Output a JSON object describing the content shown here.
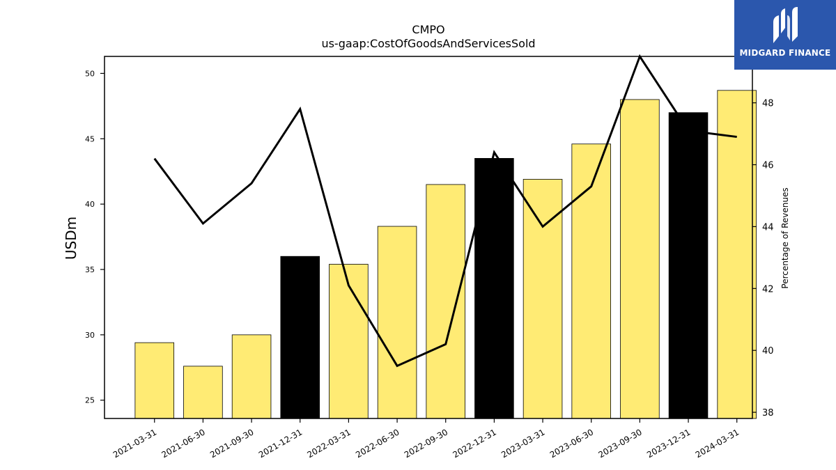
{
  "chart_data": {
    "type": "bar",
    "title": "CMPO",
    "subtitle": "us-gaap:CostOfGoodsAndServicesSold",
    "ylabel": "USDm",
    "y2label": "Percentage of Revenues",
    "ylim": [
      23.6,
      51.3
    ],
    "y2lim": [
      37.8,
      49.5
    ],
    "yticks": [
      25,
      30,
      35,
      40,
      45,
      50
    ],
    "y2ticks": [
      38,
      40,
      42,
      44,
      46,
      48
    ],
    "categories": [
      "2021-03-31",
      "2021-06-30",
      "2021-09-30",
      "2021-12-31",
      "2022-03-31",
      "2022-06-30",
      "2022-09-30",
      "2022-12-31",
      "2023-03-31",
      "2023-06-30",
      "2023-09-30",
      "2023-12-31",
      "2024-03-31"
    ],
    "series": [
      {
        "type": "bar",
        "axis": "left",
        "values": [
          29.4,
          27.6,
          30.0,
          36.0,
          35.4,
          38.3,
          41.5,
          43.5,
          41.9,
          44.6,
          48.0,
          47.0,
          48.7
        ],
        "colors": [
          "#ffeb74",
          "#ffeb74",
          "#ffeb74",
          "#000000",
          "#ffeb74",
          "#ffeb74",
          "#ffeb74",
          "#000000",
          "#ffeb74",
          "#ffeb74",
          "#ffeb74",
          "#000000",
          "#ffeb74"
        ]
      },
      {
        "type": "line",
        "axis": "right",
        "values": [
          46.2,
          44.1,
          45.4,
          47.8,
          42.1,
          39.5,
          40.2,
          46.4,
          44.0,
          45.3,
          49.5,
          47.1,
          46.9
        ],
        "color": "#000000"
      }
    ],
    "grid": false,
    "legend": "none"
  },
  "logo": {
    "text": "MIDGARD FINANCE",
    "background": "#2b57ad"
  }
}
